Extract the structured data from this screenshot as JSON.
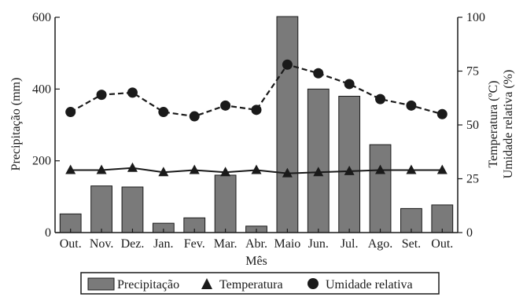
{
  "chart_data": {
    "type": "bar",
    "categories": [
      "Out.",
      "Nov.",
      "Dez.",
      "Jan.",
      "Fev.",
      "Mar.",
      "Abr.",
      "Maio",
      "Jun.",
      "Jul.",
      "Ago.",
      "Set.",
      "Out."
    ],
    "xlabel": "Mês",
    "ylabel_left": "Precipitação (mm)",
    "ylabel_right_1": "Temperatura (ºC)",
    "ylabel_right_2": "Umidade relativa (%)",
    "ylim_left": [
      0,
      600
    ],
    "ylim_right": [
      0,
      100
    ],
    "yticks_left": [
      "0",
      "200",
      "400",
      "600"
    ],
    "yticks_right": [
      "0",
      "25",
      "50",
      "75",
      "100"
    ],
    "grid": false,
    "legend_position": "bottom",
    "series": [
      {
        "name": "Precipitação",
        "type": "bar",
        "axis": "left",
        "color": "#7a7a7a",
        "values": [
          52,
          130,
          127,
          26,
          41,
          160,
          18,
          602,
          400,
          380,
          245,
          67,
          77
        ]
      },
      {
        "name": "Temperatura",
        "type": "line",
        "axis": "right",
        "marker": "triangle",
        "line_style": "solid",
        "values": [
          29,
          29,
          30,
          28,
          29,
          28,
          29,
          27.5,
          28,
          28.5,
          29,
          29,
          29
        ]
      },
      {
        "name": "Umidade relativa",
        "type": "line",
        "axis": "right",
        "marker": "circle",
        "line_style": "dashed",
        "values": [
          56,
          64,
          65,
          56,
          54,
          59,
          57,
          78,
          74,
          69,
          62,
          59,
          55
        ]
      }
    ]
  }
}
